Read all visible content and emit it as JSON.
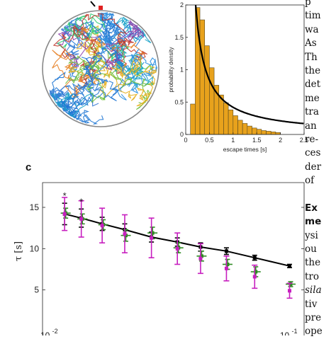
{
  "panels": {
    "c": {
      "label": "c"
    }
  },
  "chart_data": [
    {
      "type": "bar",
      "panel": "histogram",
      "xlabel": "escape times [s]",
      "ylabel": "probability density",
      "xlim": [
        0,
        2.5
      ],
      "ylim": [
        0,
        2
      ],
      "xticks": [
        "0",
        "0.5",
        "1",
        "1.5",
        "2",
        "2.5"
      ],
      "yticks": [
        "0",
        "0.5",
        "1",
        "1.5",
        "2"
      ],
      "bar_color": "#E8A21C",
      "bin_edges": [
        0.1,
        0.2,
        0.3,
        0.4,
        0.5,
        0.6,
        0.7,
        0.8,
        0.9,
        1.0,
        1.1,
        1.2,
        1.3,
        1.4,
        1.5,
        1.6,
        1.7,
        1.8,
        1.9,
        2.0
      ],
      "values": [
        0.47,
        1.96,
        1.77,
        1.37,
        1.03,
        0.76,
        0.61,
        0.49,
        0.38,
        0.29,
        0.22,
        0.17,
        0.13,
        0.1,
        0.08,
        0.06,
        0.05,
        0.04,
        0.03
      ],
      "fit_curve": {
        "formula": "0.42/x",
        "color": "#000000"
      }
    },
    {
      "type": "scatter",
      "panel": "c",
      "xlabel": "",
      "ylabel": "τ [s]",
      "xscale": "log",
      "xlim": [
        0.0093,
        0.115
      ],
      "ylim": [
        0,
        18
      ],
      "xtick_labels": [
        "10",
        "-2",
        "10",
        "-1"
      ],
      "yticks": [
        "5",
        "10",
        "15"
      ],
      "annotations": [
        "*",
        "*"
      ],
      "series": [
        {
          "color": "#000000",
          "marker": "square",
          "line": true,
          "points": [
            {
              "x": 0.0115,
              "y": 14.2,
              "yerr": 1.3
            },
            {
              "x": 0.0135,
              "y": 13.7,
              "yerr": 1.1
            },
            {
              "x": 0.0165,
              "y": 13.0,
              "yerr": 0.8
            },
            {
              "x": 0.0205,
              "y": 12.3,
              "yerr": 0.7
            },
            {
              "x": 0.0265,
              "y": 11.4,
              "yerr": 0.6
            },
            {
              "x": 0.034,
              "y": 10.8,
              "yerr": 0.5
            },
            {
              "x": 0.0425,
              "y": 10.2,
              "yerr": 0.5
            },
            {
              "x": 0.0545,
              "y": 9.7,
              "yerr": 0.4
            },
            {
              "x": 0.0715,
              "y": 8.9,
              "yerr": 0.3
            },
            {
              "x": 0.1,
              "y": 7.9,
              "yerr": 0.2
            }
          ]
        },
        {
          "color": "#2E8B22",
          "marker": "square",
          "line": false,
          "points": [
            {
              "x": 0.0115,
              "y": 14.3,
              "yerr": 0.6
            },
            {
              "x": 0.0135,
              "y": 13.6,
              "yerr": 0.6
            },
            {
              "x": 0.0165,
              "y": 12.9,
              "yerr": 0.6
            },
            {
              "x": 0.0205,
              "y": 11.6,
              "yerr": 0.7
            },
            {
              "x": 0.0265,
              "y": 11.9,
              "yerr": 0.7
            },
            {
              "x": 0.034,
              "y": 10.1,
              "yerr": 0.6
            },
            {
              "x": 0.0425,
              "y": 9.1,
              "yerr": 0.6
            },
            {
              "x": 0.0545,
              "y": 8.1,
              "yerr": 0.6
            },
            {
              "x": 0.0715,
              "y": 7.2,
              "yerr": 0.6
            },
            {
              "x": 0.1,
              "y": 5.7,
              "yerr": 0.3
            }
          ]
        },
        {
          "color": "#C71FBF",
          "marker": "square",
          "line": false,
          "points": [
            {
              "x": 0.0115,
              "y": 14.2,
              "yerr": 2.0
            },
            {
              "x": 0.0135,
              "y": 13.6,
              "yerr": 2.2
            },
            {
              "x": 0.0165,
              "y": 12.8,
              "yerr": 2.1
            },
            {
              "x": 0.0205,
              "y": 11.8,
              "yerr": 2.3
            },
            {
              "x": 0.0265,
              "y": 11.3,
              "yerr": 2.4
            },
            {
              "x": 0.034,
              "y": 10.0,
              "yerr": 1.9
            },
            {
              "x": 0.0425,
              "y": 8.8,
              "yerr": 1.8
            },
            {
              "x": 0.0545,
              "y": 7.6,
              "yerr": 1.5
            },
            {
              "x": 0.0715,
              "y": 6.6,
              "yerr": 1.4
            },
            {
              "x": 0.1,
              "y": 4.9,
              "yerr": 0.9
            }
          ]
        }
      ]
    }
  ],
  "body_text": {
    "lines": [
      {
        "text": "p",
        "style": "normal"
      },
      {
        "text": "tim",
        "style": "normal"
      },
      {
        "text": "wa",
        "style": "normal"
      },
      {
        "text": "As",
        "style": "normal"
      },
      {
        "text": "Th",
        "style": "normal"
      },
      {
        "text": "the",
        "style": "normal"
      },
      {
        "text": "det",
        "style": "normal"
      },
      {
        "text": "me",
        "style": "normal"
      },
      {
        "text": "tra",
        "style": "normal"
      },
      {
        "text": "an",
        "style": "normal"
      },
      {
        "text": "re-",
        "style": "normal"
      },
      {
        "text": "ces",
        "style": "normal"
      },
      {
        "text": "der",
        "style": "normal"
      },
      {
        "text": "of",
        "style": "normal"
      },
      {
        "text": "",
        "style": "normal"
      },
      {
        "text": "Ex",
        "style": "bold"
      },
      {
        "text": "me",
        "style": "bold"
      },
      {
        "text": "ysi",
        "style": "normal"
      },
      {
        "text": "ou",
        "style": "normal"
      },
      {
        "text": "the",
        "style": "normal"
      },
      {
        "text": "tro",
        "style": "normal"
      },
      {
        "text": "sila",
        "style": "it"
      },
      {
        "text": "tiv",
        "style": "normal"
      },
      {
        "text": "pre",
        "style": "normal"
      },
      {
        "text": "ope",
        "style": "normal"
      }
    ]
  }
}
